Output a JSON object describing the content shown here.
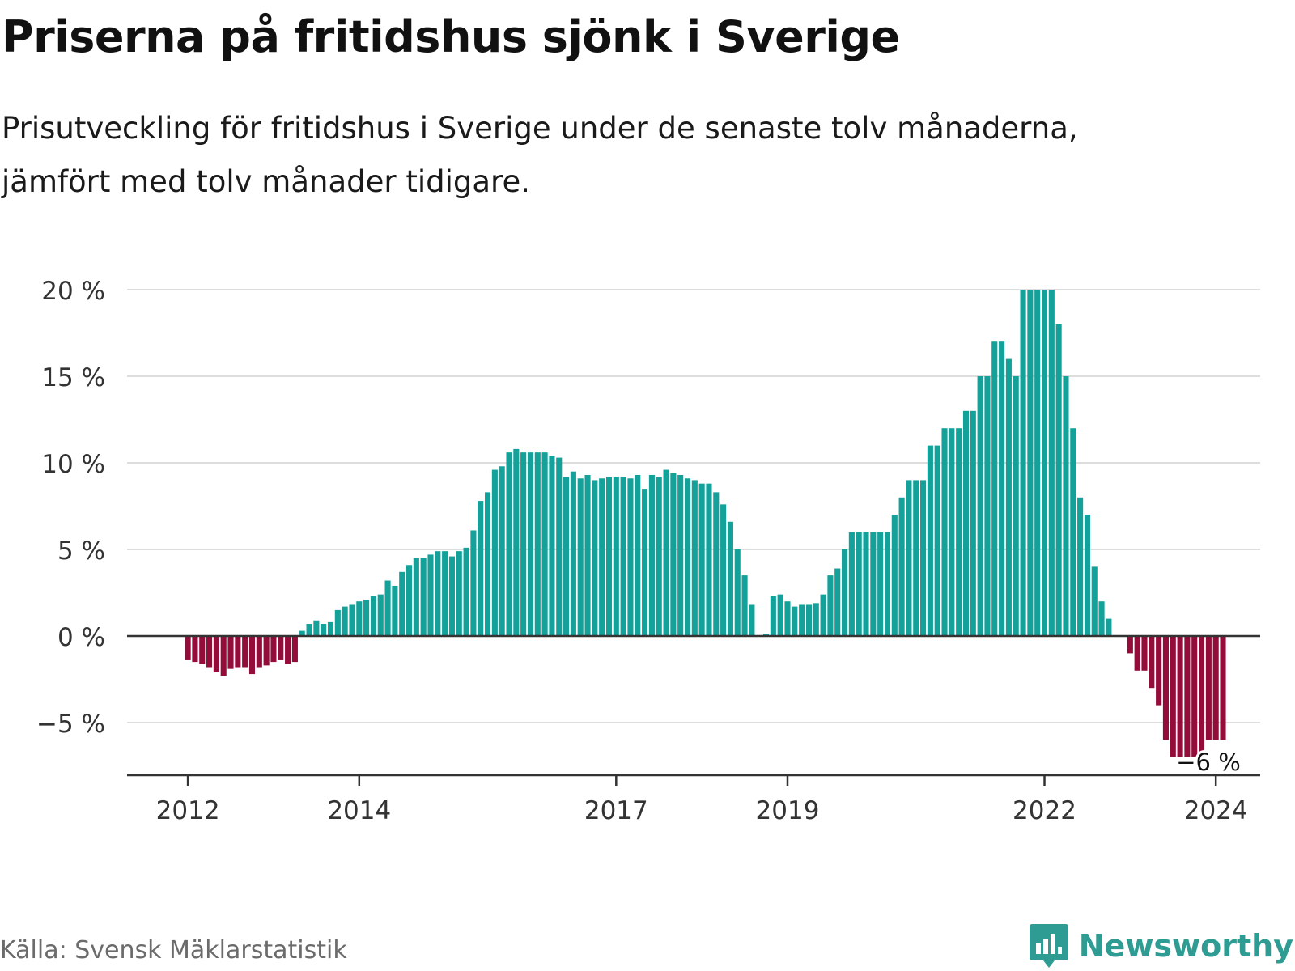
{
  "title": "Priserna på fritidshus sjönk i Sverige",
  "subtitle_lines": [
    "Prisutveckling för fritidshus i Sverige under de senaste tolv månaderna,",
    "jämfört med tolv månader tidigare."
  ],
  "source": "Källa: Svensk Mäklarstatistik",
  "brand": "Newsworthy",
  "colors": {
    "positive": "#13a19a",
    "negative": "#940d3a",
    "grid": "#dddddd",
    "axis": "#333333",
    "brand": "#2e9c92"
  },
  "chart_data": {
    "type": "bar",
    "title": "Priserna på fritidshus sjönk i Sverige",
    "xlabel": "",
    "ylabel": "",
    "unit": "%",
    "ylim": [
      -8,
      20
    ],
    "yticks": [
      20,
      15,
      10,
      5,
      0,
      -5
    ],
    "ytick_labels": [
      "20 %",
      "15 %",
      "10 %",
      "5 %",
      "0 %",
      "−5 %"
    ],
    "xtick_labels": [
      "2012",
      "2014",
      "2017",
      "2019",
      "2022",
      "2024"
    ],
    "xtick_bar_index": [
      8,
      32,
      68,
      92,
      128,
      152
    ],
    "end_label": "−6 %",
    "grid": true,
    "values": [
      0,
      0,
      0,
      0,
      0,
      0,
      0,
      0,
      -1.4,
      -1.5,
      -1.6,
      -1.8,
      -2.1,
      -2.3,
      -1.9,
      -1.8,
      -1.8,
      -2.2,
      -1.8,
      -1.7,
      -1.5,
      -1.4,
      -1.6,
      -1.5,
      0.3,
      0.7,
      0.9,
      0.7,
      0.8,
      1.5,
      1.7,
      1.8,
      2.0,
      2.1,
      2.3,
      2.4,
      3.2,
      2.9,
      3.7,
      4.1,
      4.5,
      4.5,
      4.7,
      4.9,
      4.9,
      4.6,
      4.9,
      5.1,
      6.1,
      7.8,
      8.3,
      9.6,
      9.8,
      10.6,
      10.8,
      10.6,
      10.6,
      10.6,
      10.6,
      10.4,
      10.3,
      9.2,
      9.5,
      9.1,
      9.3,
      9.0,
      9.1,
      9.2,
      9.2,
      9.2,
      9.1,
      9.3,
      8.5,
      9.3,
      9.2,
      9.6,
      9.4,
      9.3,
      9.1,
      9.0,
      8.8,
      8.8,
      8.3,
      7.6,
      6.6,
      5.0,
      3.5,
      1.8,
      0,
      0.1,
      2.3,
      2.4,
      2.0,
      1.7,
      1.8,
      1.8,
      1.9,
      2.4,
      3.5,
      3.9,
      5.0,
      6.0,
      6.0,
      6.0,
      6.0,
      6.0,
      6.0,
      7.0,
      8.0,
      9.0,
      9.0,
      9.0,
      11.0,
      11.0,
      12.0,
      12.0,
      12.0,
      13.0,
      13.0,
      15.0,
      15.0,
      17.0,
      17.0,
      16.0,
      15.0,
      20.0,
      20.0,
      20.0,
      20.0,
      20.0,
      18.0,
      15.0,
      12.0,
      8.0,
      7.0,
      4.0,
      2.0,
      1.0,
      0,
      0,
      -1.0,
      -2.0,
      -2.0,
      -3.0,
      -4.0,
      -6.0,
      -7.0,
      -7.0,
      -7.0,
      -7.0,
      -7.0,
      -6.0,
      -6.0,
      -6.0
    ]
  }
}
